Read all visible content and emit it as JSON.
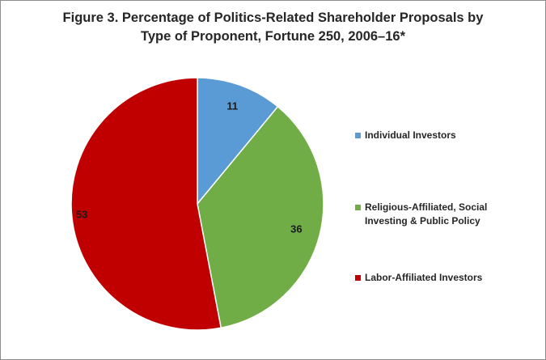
{
  "chart_data": {
    "type": "pie",
    "title": "Figure 3. Percentage of Politics-Related Shareholder Proposals by Type of Proponent, Fortune 250, 2006–16*",
    "title_lines": [
      "Figure 3. Percentage of Politics-Related Shareholder Proposals by",
      "Type of Proponent, Fortune 250, 2006–16*"
    ],
    "legend_position": "right",
    "slices": [
      {
        "label": "Individual Investors",
        "label_lines": [
          "Individual Investors"
        ],
        "value": 11,
        "value_label": "11",
        "color": "#5b9bd5"
      },
      {
        "label": "Religious-Affiliated, Social Investing & Public Policy",
        "label_lines": [
          "Religious-Affiliated, Social",
          "Investing & Public Policy"
        ],
        "value": 36,
        "value_label": "36",
        "color": "#70ad47"
      },
      {
        "label": "Labor-Affiliated Investors",
        "label_lines": [
          "Labor-Affiliated Investors"
        ],
        "value": 53,
        "value_label": "53",
        "color": "#c00000"
      }
    ]
  }
}
